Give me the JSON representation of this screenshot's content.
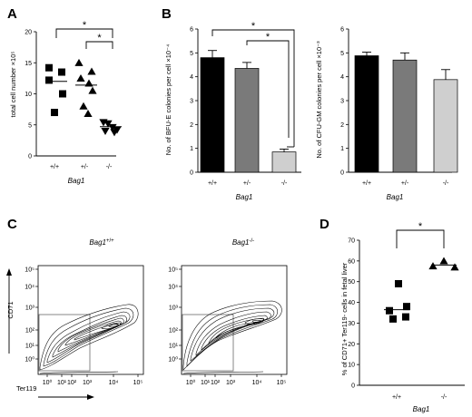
{
  "panels": {
    "A": "A",
    "B": "B",
    "C": "C",
    "D": "D"
  },
  "chart_data": [
    {
      "id": "A",
      "type": "scatter",
      "categories": [
        "+/+",
        "+/-",
        "-/-"
      ],
      "xlabel": "Bag1",
      "ylabel": "total cell number ×10⁵",
      "ylim": [
        0,
        20
      ],
      "yticks": [
        0,
        5,
        10,
        15,
        20
      ],
      "markers": [
        "square",
        "triangle-up",
        "triangle-down"
      ],
      "points": [
        [
          14.2,
          13.5,
          12.2,
          10.0,
          7.0
        ],
        [
          15.0,
          13.6,
          12.5,
          11.7,
          10.5,
          8.0,
          6.8
        ],
        [
          5.4,
          5.2,
          4.6,
          4.2,
          4.0,
          3.8
        ]
      ],
      "means": [
        12.0,
        11.4,
        4.7
      ],
      "significance": [
        {
          "from": 0,
          "to": 2,
          "label": "*"
        },
        {
          "from": 1,
          "to": 2,
          "label": "*"
        }
      ]
    },
    {
      "id": "B-left",
      "type": "bar",
      "categories": [
        "+/+",
        "+/-",
        "-/-"
      ],
      "values": [
        4.8,
        4.35,
        0.85
      ],
      "errors": [
        0.3,
        0.25,
        0.12
      ],
      "colors": [
        "#000000",
        "#7a7a7a",
        "#cfcfcf"
      ],
      "xlabel": "Bag1",
      "ylabel": "No. of BFU-E colonies per cell ×10⁻⁴",
      "ylim": [
        0,
        6
      ],
      "yticks": [
        0,
        1,
        2,
        3,
        4,
        5,
        6
      ],
      "significance": [
        {
          "from": 0,
          "to": 2,
          "label": "*"
        },
        {
          "from": 1,
          "to": 2,
          "label": "*"
        }
      ]
    },
    {
      "id": "B-right",
      "type": "bar",
      "categories": [
        "+/+",
        "+/-",
        "-/-"
      ],
      "values": [
        4.88,
        4.7,
        3.88
      ],
      "errors": [
        0.15,
        0.3,
        0.42
      ],
      "colors": [
        "#000000",
        "#7a7a7a",
        "#cfcfcf"
      ],
      "xlabel": "Bag1",
      "ylabel": "No. of CFU-GM colonies per cell ×10⁻³",
      "ylim": [
        0,
        6
      ],
      "yticks": [
        0,
        1,
        2,
        3,
        4,
        5,
        6
      ]
    },
    {
      "id": "C",
      "type": "contour",
      "plots": [
        {
          "title": "Bag1",
          "title_sup": "+/+"
        },
        {
          "title": "Bag1",
          "title_sup": "-/-"
        }
      ],
      "xlabel": "Ter119",
      "ylabel": "CD71",
      "xticks": [
        "10⁰",
        "10¹",
        "10²",
        "10³",
        "10⁴",
        "10⁵"
      ],
      "yticks": [
        "10⁰",
        "10¹",
        "10²",
        "10³",
        "10⁴",
        "10⁵"
      ]
    },
    {
      "id": "D",
      "type": "scatter",
      "categories": [
        "+/+",
        "-/-"
      ],
      "xlabel": "Bag1",
      "ylabel": "% of CD71+ Ter119- cells in fetal liver",
      "ylim": [
        0,
        70
      ],
      "yticks": [
        0,
        10,
        20,
        30,
        40,
        50,
        60,
        70
      ],
      "markers": [
        "square",
        "triangle-up"
      ],
      "points": [
        [
          49,
          38,
          36,
          33,
          32
        ],
        [
          60,
          57.5,
          57
        ]
      ],
      "means": [
        36.5,
        58
      ],
      "significance": [
        {
          "from": 0,
          "to": 1,
          "label": "*"
        }
      ]
    }
  ]
}
